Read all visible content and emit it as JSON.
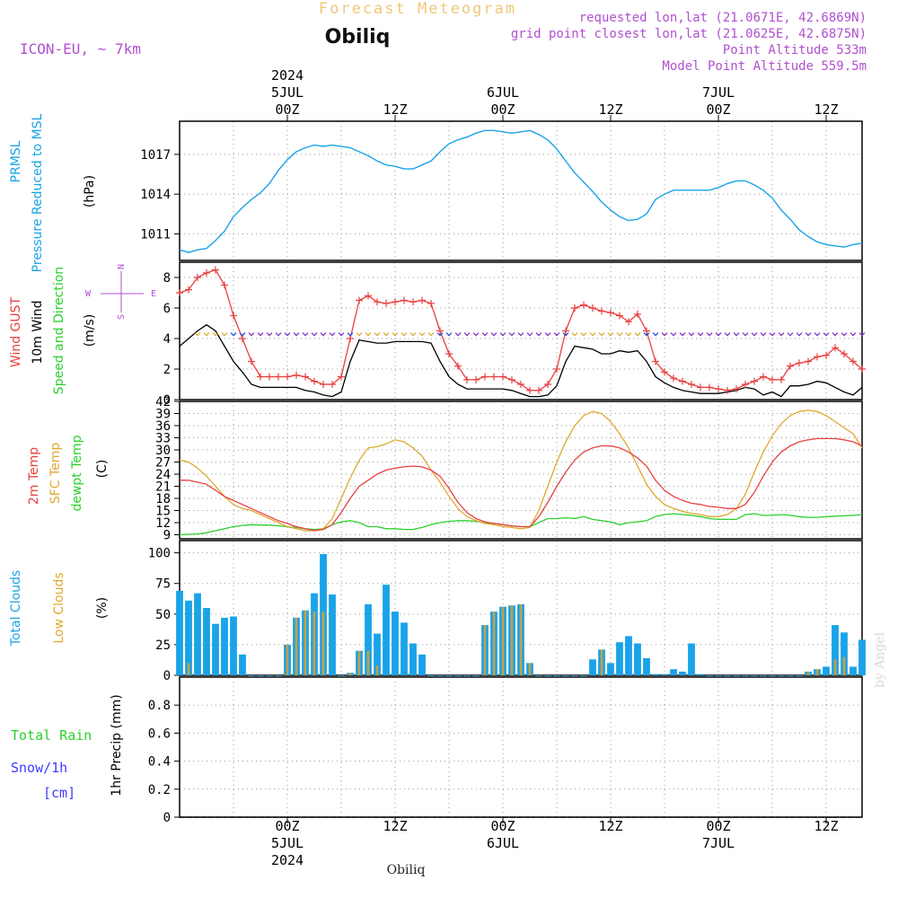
{
  "header": {
    "title": "Forecast Meteogram",
    "location": "Obiliq",
    "model": "ICON-EU, ~ 7km",
    "requested": "requested lon,lat (21.0671E, 42.6869N)",
    "gridpoint": "grid point closest lon,lat (21.0625E, 42.6875N)",
    "point_alt": "Point Altitude 533m",
    "model_alt": "Model Point Altitude 559.5m",
    "footer_location": "Obiliq",
    "watermark": "by Angel"
  },
  "colors": {
    "pressure": "#1aa3e8",
    "gust": "#e84040",
    "wind": "#000000",
    "t2m": "#e84040",
    "sfc": "#e0a830",
    "dewpt": "#2ccf2c",
    "total_clouds": "#1aa3e8",
    "low_clouds": "#c8a040",
    "rain": "#2ccf2c",
    "snow": "#3c3cff",
    "header_orange": "#f0c878",
    "header_purple": "#b050d0",
    "compass": "#b050d0"
  },
  "time_axis": {
    "top_labels": [
      {
        "hour": 12,
        "lines": [
          "2024",
          "5JUL",
          "00Z"
        ]
      },
      {
        "hour": 24,
        "lines": [
          "12Z"
        ]
      },
      {
        "hour": 36,
        "lines": [
          "6JUL",
          "00Z"
        ]
      },
      {
        "hour": 48,
        "lines": [
          "12Z"
        ]
      },
      {
        "hour": 60,
        "lines": [
          "7JUL",
          "00Z"
        ]
      },
      {
        "hour": 72,
        "lines": [
          "12Z"
        ]
      }
    ],
    "bottom_labels": [
      {
        "hour": 12,
        "lines": [
          "00Z",
          "5JUL",
          "2024"
        ]
      },
      {
        "hour": 24,
        "lines": [
          "12Z"
        ]
      },
      {
        "hour": 36,
        "lines": [
          "00Z",
          "6JUL"
        ]
      },
      {
        "hour": 48,
        "lines": [
          "12Z"
        ]
      },
      {
        "hour": 60,
        "lines": [
          "00Z",
          "7JUL"
        ]
      },
      {
        "hour": 72,
        "lines": [
          "12Z"
        ]
      }
    ]
  },
  "panels": {
    "pressure": {
      "labels": [
        "PRMSL",
        "Pressure Reduced to MSL"
      ],
      "unit": "(hPa)"
    },
    "wind": {
      "labels": [
        "Wind GUST",
        "10m Wind",
        "Speed and Direction"
      ],
      "unit": "(m/s)",
      "compass": {
        "n": "N",
        "s": "S",
        "w": "W",
        "e": "E"
      }
    },
    "temp": {
      "labels": [
        "2m Temp",
        "SFC Temp",
        "dewpt Temp"
      ],
      "unit": "(C)"
    },
    "clouds": {
      "labels": [
        "Total Clouds",
        "Low Clouds"
      ],
      "unit": "(%)"
    },
    "precip": {
      "labels": [
        "Total Rain",
        "Snow/1h",
        "[cm]"
      ],
      "unit": "1hr Precip (mm)"
    }
  },
  "chart_data": [
    {
      "type": "line",
      "name": "PRMSL",
      "x_hours": [
        0,
        1,
        2,
        3,
        4,
        5,
        6,
        7,
        8,
        9,
        10,
        11,
        12,
        13,
        14,
        15,
        16,
        17,
        18,
        19,
        20,
        21,
        22,
        23,
        24,
        25,
        26,
        27,
        28,
        29,
        30,
        31,
        32,
        33,
        34,
        35,
        36,
        37,
        38,
        39,
        40,
        41,
        42,
        43,
        44,
        45,
        46,
        47,
        48,
        49,
        50,
        51,
        52,
        53,
        54,
        55,
        56,
        57,
        58,
        59,
        60,
        61,
        62,
        63,
        64,
        65,
        66,
        67,
        68,
        69,
        70,
        71,
        72,
        73,
        74,
        75,
        76
      ],
      "values": [
        1009.8,
        1009.6,
        1009.8,
        1009.9,
        1010.5,
        1011.2,
        1012.3,
        1013.0,
        1013.6,
        1014.1,
        1014.8,
        1015.8,
        1016.6,
        1017.2,
        1017.5,
        1017.7,
        1017.6,
        1017.7,
        1017.6,
        1017.5,
        1017.2,
        1016.9,
        1016.5,
        1016.2,
        1016.1,
        1015.9,
        1015.9,
        1016.2,
        1016.5,
        1017.2,
        1017.8,
        1018.1,
        1018.3,
        1018.6,
        1018.8,
        1018.8,
        1018.7,
        1018.6,
        1018.7,
        1018.8,
        1018.5,
        1018.1,
        1017.4,
        1016.5,
        1015.6,
        1014.9,
        1014.2,
        1013.4,
        1012.8,
        1012.3,
        1012.0,
        1012.1,
        1012.5,
        1013.6,
        1014.0,
        1014.3,
        1014.3,
        1014.3,
        1014.3,
        1014.3,
        1014.5,
        1014.8,
        1015.0,
        1015.0,
        1014.7,
        1014.3,
        1013.7,
        1012.8,
        1012.1,
        1011.3,
        1010.8,
        1010.4,
        1010.2,
        1010.1,
        1010.0,
        1010.2,
        1010.3
      ],
      "ylim": [
        1009.0,
        1019.5
      ],
      "ticks": [
        1011,
        1014,
        1017
      ]
    },
    {
      "type": "line",
      "name": "wind",
      "x_hours": [
        0,
        1,
        2,
        3,
        4,
        5,
        6,
        7,
        8,
        9,
        10,
        11,
        12,
        13,
        14,
        15,
        16,
        17,
        18,
        19,
        20,
        21,
        22,
        23,
        24,
        25,
        26,
        27,
        28,
        29,
        30,
        31,
        32,
        33,
        34,
        35,
        36,
        37,
        38,
        39,
        40,
        41,
        42,
        43,
        44,
        45,
        46,
        47,
        48,
        49,
        50,
        51,
        52,
        53,
        54,
        55,
        56,
        57,
        58,
        59,
        60,
        61,
        62,
        63,
        64,
        65,
        66,
        67,
        68,
        69,
        70,
        71,
        72,
        73,
        74,
        75,
        76
      ],
      "gust": [
        7.0,
        7.2,
        8.0,
        8.3,
        8.5,
        7.5,
        5.5,
        4.0,
        2.5,
        1.5,
        1.5,
        1.5,
        1.5,
        1.6,
        1.5,
        1.2,
        1.0,
        1.0,
        1.5,
        4.0,
        6.5,
        6.8,
        6.4,
        6.3,
        6.4,
        6.5,
        6.4,
        6.5,
        6.3,
        4.5,
        3.0,
        2.2,
        1.3,
        1.3,
        1.5,
        1.5,
        1.5,
        1.3,
        1.0,
        0.6,
        0.6,
        1.0,
        2.0,
        4.5,
        6.0,
        6.2,
        6.0,
        5.8,
        5.7,
        5.5,
        5.1,
        5.6,
        4.5,
        2.5,
        1.8,
        1.4,
        1.2,
        1.0,
        0.8,
        0.8,
        0.7,
        0.6,
        0.7,
        1.0,
        1.2,
        1.5,
        1.3,
        1.3,
        2.2,
        2.4,
        2.5,
        2.8,
        2.9,
        3.4,
        3.0,
        2.5,
        2.0
      ],
      "speed": [
        3.5,
        4.0,
        4.5,
        4.9,
        4.5,
        3.5,
        2.5,
        1.8,
        1.0,
        0.8,
        0.8,
        0.8,
        0.8,
        0.8,
        0.6,
        0.5,
        0.3,
        0.2,
        0.5,
        2.5,
        3.9,
        3.8,
        3.7,
        3.7,
        3.8,
        3.8,
        3.8,
        3.8,
        3.7,
        2.5,
        1.5,
        1.0,
        0.7,
        0.7,
        0.7,
        0.7,
        0.7,
        0.6,
        0.4,
        0.2,
        0.2,
        0.3,
        0.9,
        2.5,
        3.5,
        3.4,
        3.3,
        3.0,
        3.0,
        3.2,
        3.1,
        3.2,
        2.5,
        1.5,
        1.1,
        0.8,
        0.6,
        0.5,
        0.4,
        0.4,
        0.4,
        0.5,
        0.6,
        0.8,
        0.7,
        0.3,
        0.5,
        0.2,
        0.9,
        0.9,
        1.0,
        1.2,
        1.1,
        0.8,
        0.5,
        0.3,
        0.8
      ],
      "ylim": [
        0,
        9
      ],
      "ticks": [
        0,
        2,
        4,
        6,
        8
      ]
    },
    {
      "type": "line",
      "name": "temperature",
      "x_hours": [
        0,
        1,
        2,
        3,
        4,
        5,
        6,
        7,
        8,
        9,
        10,
        11,
        12,
        13,
        14,
        15,
        16,
        17,
        18,
        19,
        20,
        21,
        22,
        23,
        24,
        25,
        26,
        27,
        28,
        29,
        30,
        31,
        32,
        33,
        34,
        35,
        36,
        37,
        38,
        39,
        40,
        41,
        42,
        43,
        44,
        45,
        46,
        47,
        48,
        49,
        50,
        51,
        52,
        53,
        54,
        55,
        56,
        57,
        58,
        59,
        60,
        61,
        62,
        63,
        64,
        65,
        66,
        67,
        68,
        69,
        70,
        71,
        72,
        73,
        74,
        75,
        76
      ],
      "t2m": [
        22.5,
        22.5,
        22.0,
        21.5,
        20.0,
        18.5,
        17.5,
        16.5,
        15.5,
        14.5,
        13.5,
        12.5,
        11.8,
        11.0,
        10.5,
        10.0,
        10.3,
        11.5,
        14.5,
        18.0,
        21.0,
        22.5,
        24.0,
        25.0,
        25.5,
        25.8,
        26.0,
        25.8,
        25.0,
        23.5,
        20.5,
        17.0,
        14.5,
        13.0,
        12.2,
        11.8,
        11.5,
        11.2,
        11.0,
        11.0,
        13.5,
        17.0,
        21.0,
        24.5,
        27.5,
        29.5,
        30.5,
        31.0,
        31.0,
        30.5,
        29.5,
        28.0,
        26.0,
        22.5,
        20.0,
        18.5,
        17.5,
        16.8,
        16.5,
        16.0,
        15.8,
        15.5,
        15.5,
        16.5,
        19.5,
        23.5,
        27.0,
        29.5,
        31.0,
        32.0,
        32.5,
        32.8,
        32.8,
        32.8,
        32.5,
        32.0,
        31.0
      ],
      "sfc": [
        27.5,
        27.0,
        25.5,
        23.5,
        21.0,
        18.5,
        16.5,
        15.5,
        15.0,
        14.0,
        13.0,
        12.0,
        11.0,
        10.5,
        10.0,
        10.0,
        10.5,
        13.0,
        18.0,
        23.0,
        27.5,
        30.5,
        30.8,
        31.5,
        32.5,
        32.0,
        30.5,
        28.5,
        25.0,
        22.0,
        18.5,
        15.5,
        13.5,
        12.5,
        11.8,
        11.5,
        11.0,
        10.8,
        10.5,
        10.8,
        15.0,
        21.0,
        27.0,
        32.0,
        36.0,
        38.5,
        39.5,
        39.0,
        37.0,
        34.0,
        30.5,
        26.0,
        21.5,
        18.5,
        16.5,
        15.5,
        14.8,
        14.3,
        14.0,
        13.5,
        13.5,
        14.0,
        15.5,
        19.0,
        24.5,
        29.5,
        33.5,
        36.5,
        38.5,
        39.5,
        39.8,
        39.5,
        38.5,
        37.0,
        35.5,
        34.0,
        30.5
      ],
      "dewpt": [
        9.0,
        9.1,
        9.2,
        9.5,
        10.0,
        10.5,
        11.0,
        11.3,
        11.5,
        11.4,
        11.4,
        11.2,
        11.0,
        10.8,
        10.5,
        10.3,
        10.5,
        11.5,
        12.2,
        12.5,
        12.0,
        11.0,
        11.0,
        10.5,
        10.5,
        10.3,
        10.3,
        10.8,
        11.5,
        12.0,
        12.3,
        12.5,
        12.5,
        12.3,
        12.0,
        11.8,
        11.5,
        11.2,
        11.0,
        11.0,
        12.0,
        13.0,
        13.0,
        13.2,
        13.0,
        13.5,
        12.8,
        12.5,
        12.2,
        11.5,
        12.0,
        12.2,
        12.5,
        13.5,
        14.0,
        14.2,
        14.0,
        13.8,
        13.5,
        13.0,
        12.8,
        12.8,
        12.8,
        14.0,
        14.2,
        13.8,
        13.8,
        14.0,
        13.8,
        13.5,
        13.3,
        13.3,
        13.5,
        13.6,
        13.7,
        13.8,
        14.0
      ],
      "ylim": [
        8,
        42
      ],
      "ticks": [
        9,
        12,
        15,
        18,
        21,
        24,
        27,
        30,
        33,
        36,
        39,
        42
      ]
    },
    {
      "type": "bar",
      "name": "clouds",
      "x_hours": [
        0,
        1,
        2,
        3,
        4,
        5,
        6,
        7,
        8,
        9,
        10,
        11,
        12,
        13,
        14,
        15,
        16,
        17,
        18,
        19,
        20,
        21,
        22,
        23,
        24,
        25,
        26,
        27,
        28,
        29,
        30,
        31,
        32,
        33,
        34,
        35,
        36,
        37,
        38,
        39,
        40,
        41,
        42,
        43,
        44,
        45,
        46,
        47,
        48,
        49,
        50,
        51,
        52,
        53,
        54,
        55,
        56,
        57,
        58,
        59,
        60,
        61,
        62,
        63,
        64,
        65,
        66,
        67,
        68,
        69,
        70,
        71,
        72,
        73,
        74,
        75,
        76
      ],
      "total": [
        69,
        61,
        67,
        55,
        42,
        47,
        48,
        17,
        0,
        0,
        0,
        0,
        25,
        47,
        53,
        67,
        99,
        66,
        0,
        2,
        20,
        58,
        34,
        74,
        52,
        43,
        26,
        17,
        0,
        0,
        0,
        0,
        0,
        0,
        41,
        52,
        56,
        57,
        58,
        10,
        0,
        0,
        0,
        0,
        0,
        0,
        13,
        21,
        10,
        27,
        32,
        26,
        14,
        1,
        1,
        5,
        3,
        26,
        1,
        0,
        0,
        0,
        0,
        0,
        0,
        0,
        0,
        0,
        0,
        0,
        3,
        5,
        7,
        41,
        35,
        7,
        29
      ],
      "low": [
        0,
        10,
        0,
        0,
        0,
        0,
        0,
        0,
        0,
        0,
        0,
        0,
        25,
        47,
        53,
        52,
        52,
        0,
        0,
        2,
        20,
        20,
        8,
        0,
        0,
        0,
        0,
        0,
        0,
        0,
        0,
        0,
        0,
        0,
        41,
        52,
        56,
        57,
        58,
        10,
        0,
        0,
        0,
        0,
        0,
        0,
        0,
        21,
        0,
        0,
        0,
        0,
        0,
        0,
        0,
        0,
        0,
        0,
        0,
        0,
        0,
        0,
        0,
        0,
        0,
        0,
        0,
        0,
        0,
        0,
        3,
        5,
        0,
        13,
        15,
        0,
        0
      ],
      "ylim": [
        0,
        110
      ],
      "ticks": [
        0,
        25,
        50,
        75,
        100
      ]
    },
    {
      "type": "bar",
      "name": "precip",
      "x_hours": [
        0,
        76
      ],
      "values": [
        0,
        0
      ],
      "ylim": [
        0,
        1
      ],
      "ticks": [
        "0",
        "0.2",
        "0.4",
        "0.6",
        "0.8"
      ]
    }
  ]
}
